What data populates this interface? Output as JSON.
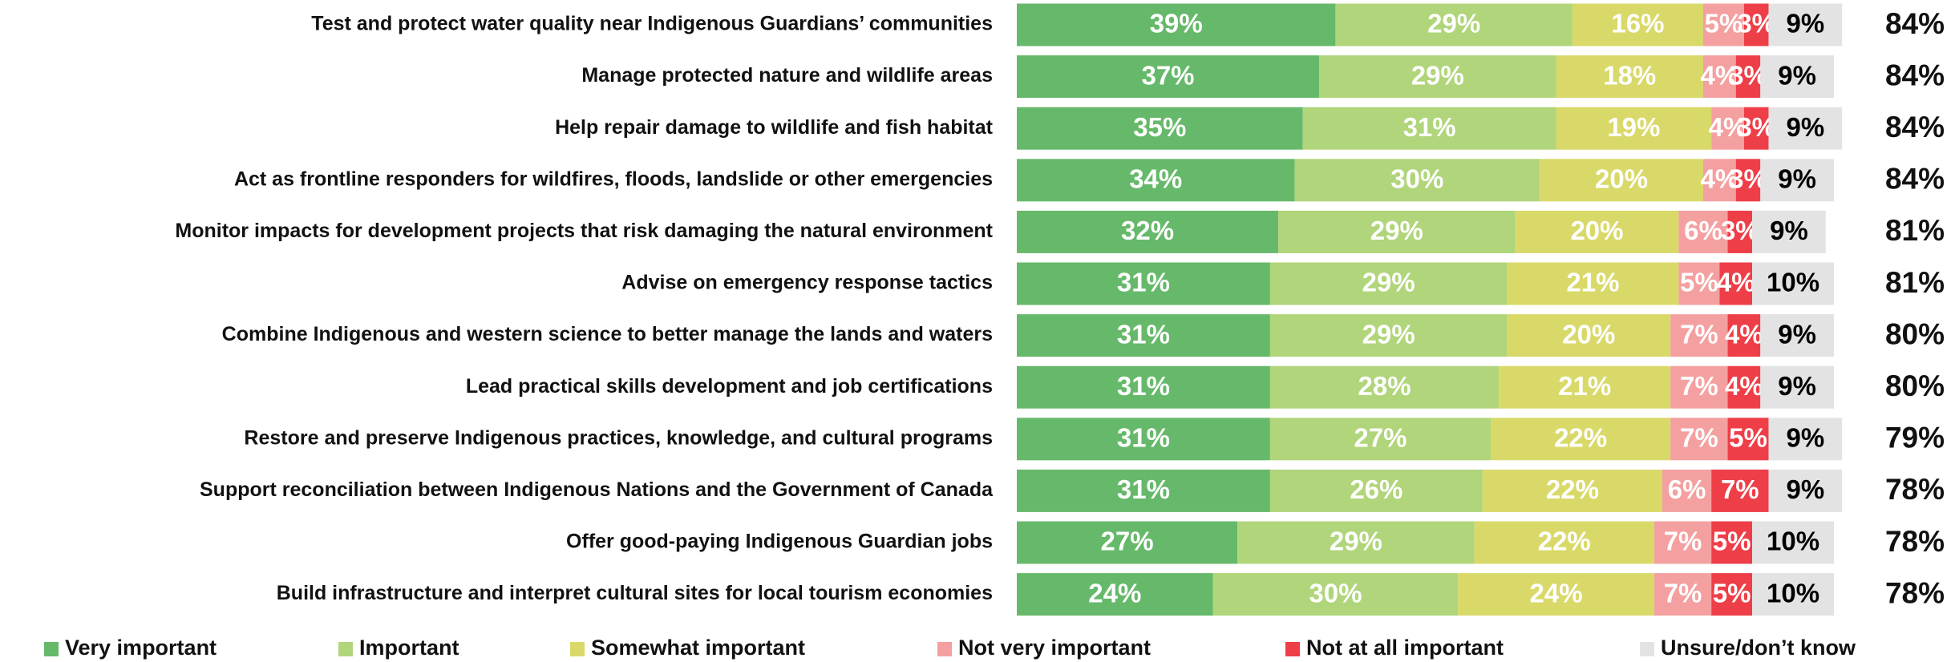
{
  "chart_data": {
    "type": "stacked_bar_horizontal",
    "categories": [
      "Test and protect water quality near Indigenous Guardians’ communities",
      "Manage protected nature and wildlife areas",
      "Help repair damage to wildlife and fish habitat",
      "Act as frontline responders for wildfires, floods, landslide or other emergencies",
      "Monitor impacts for development projects that risk damaging the natural environment",
      "Advise on emergency response tactics",
      "Combine Indigenous and western science to better manage the lands and waters",
      "Lead practical skills development and job certifications",
      "Restore and preserve Indigenous practices, knowledge, and cultural programs",
      "Support reconciliation between Indigenous Nations and the Government of Canada",
      "Offer good-paying Indigenous Guardian jobs",
      "Build infrastructure and interpret cultural sites for local tourism economies"
    ],
    "series": [
      {
        "name": "Very important",
        "color": "#66b96a",
        "label_color": "#ffffff",
        "values": [
          39,
          37,
          35,
          34,
          32,
          31,
          31,
          31,
          31,
          31,
          27,
          24
        ],
        "value_labels": [
          "39%",
          "37%",
          "35%",
          "34%",
          "32%",
          "31%",
          "31%",
          "31%",
          "31%",
          "31%",
          "27%",
          "24%"
        ]
      },
      {
        "name": "Important",
        "color": "#b0d57a",
        "label_color": "#ffffff",
        "values": [
          29,
          29,
          31,
          30,
          29,
          29,
          29,
          28,
          27,
          26,
          29,
          30
        ],
        "value_labels": [
          "29%",
          "29%",
          "31%",
          "30%",
          "29%",
          "29%",
          "29%",
          "28%",
          "27%",
          "26%",
          "29%",
          "30%"
        ]
      },
      {
        "name": "Somewhat important",
        "color": "#d9d96a",
        "label_color": "#ffffff",
        "values": [
          16,
          18,
          19,
          20,
          20,
          21,
          20,
          21,
          22,
          22,
          22,
          24
        ],
        "value_labels": [
          "16%",
          "18%",
          "19%",
          "20%",
          "20%",
          "21%",
          "20%",
          "21%",
          "22%",
          "22%",
          "22%",
          "24%"
        ]
      },
      {
        "name": "Not very important",
        "color": "#f4a0a0",
        "label_color": "#ffffff",
        "values": [
          5,
          4,
          4,
          4,
          6,
          5,
          7,
          7,
          7,
          6,
          7,
          7
        ],
        "value_labels": [
          "5%",
          "4%",
          "4%",
          "4%",
          "6%",
          "5%",
          "7%",
          "7%",
          "7%",
          "6%",
          "7%",
          "7%"
        ]
      },
      {
        "name": "Not at all important",
        "color": "#ee3e48",
        "label_color": "#ffffff",
        "values": [
          3,
          3,
          3,
          3,
          3,
          4,
          4,
          4,
          5,
          7,
          5,
          5
        ],
        "value_labels": [
          "3%",
          "3%",
          "3%",
          "3%",
          "3%",
          "4%",
          "4%",
          "4%",
          "5%",
          "7%",
          "5%",
          "5%"
        ]
      },
      {
        "name": "Unsure/don’t know",
        "color": "#e3e3e3",
        "label_color": "#000000",
        "values": [
          9,
          9,
          9,
          9,
          9,
          10,
          9,
          9,
          9,
          9,
          10,
          10
        ],
        "value_labels": [
          "9%",
          "9%",
          "9%",
          "9%",
          "9%",
          "10%",
          "9%",
          "9%",
          "9%",
          "9%",
          "10%",
          "10%"
        ]
      }
    ],
    "totals": {
      "values": [
        84,
        84,
        84,
        84,
        81,
        81,
        80,
        80,
        79,
        78,
        78,
        78
      ],
      "value_labels": [
        "84%",
        "84%",
        "84%",
        "84%",
        "81%",
        "81%",
        "80%",
        "80%",
        "79%",
        "78%",
        "78%",
        "78%"
      ]
    },
    "legend": "bottom"
  }
}
